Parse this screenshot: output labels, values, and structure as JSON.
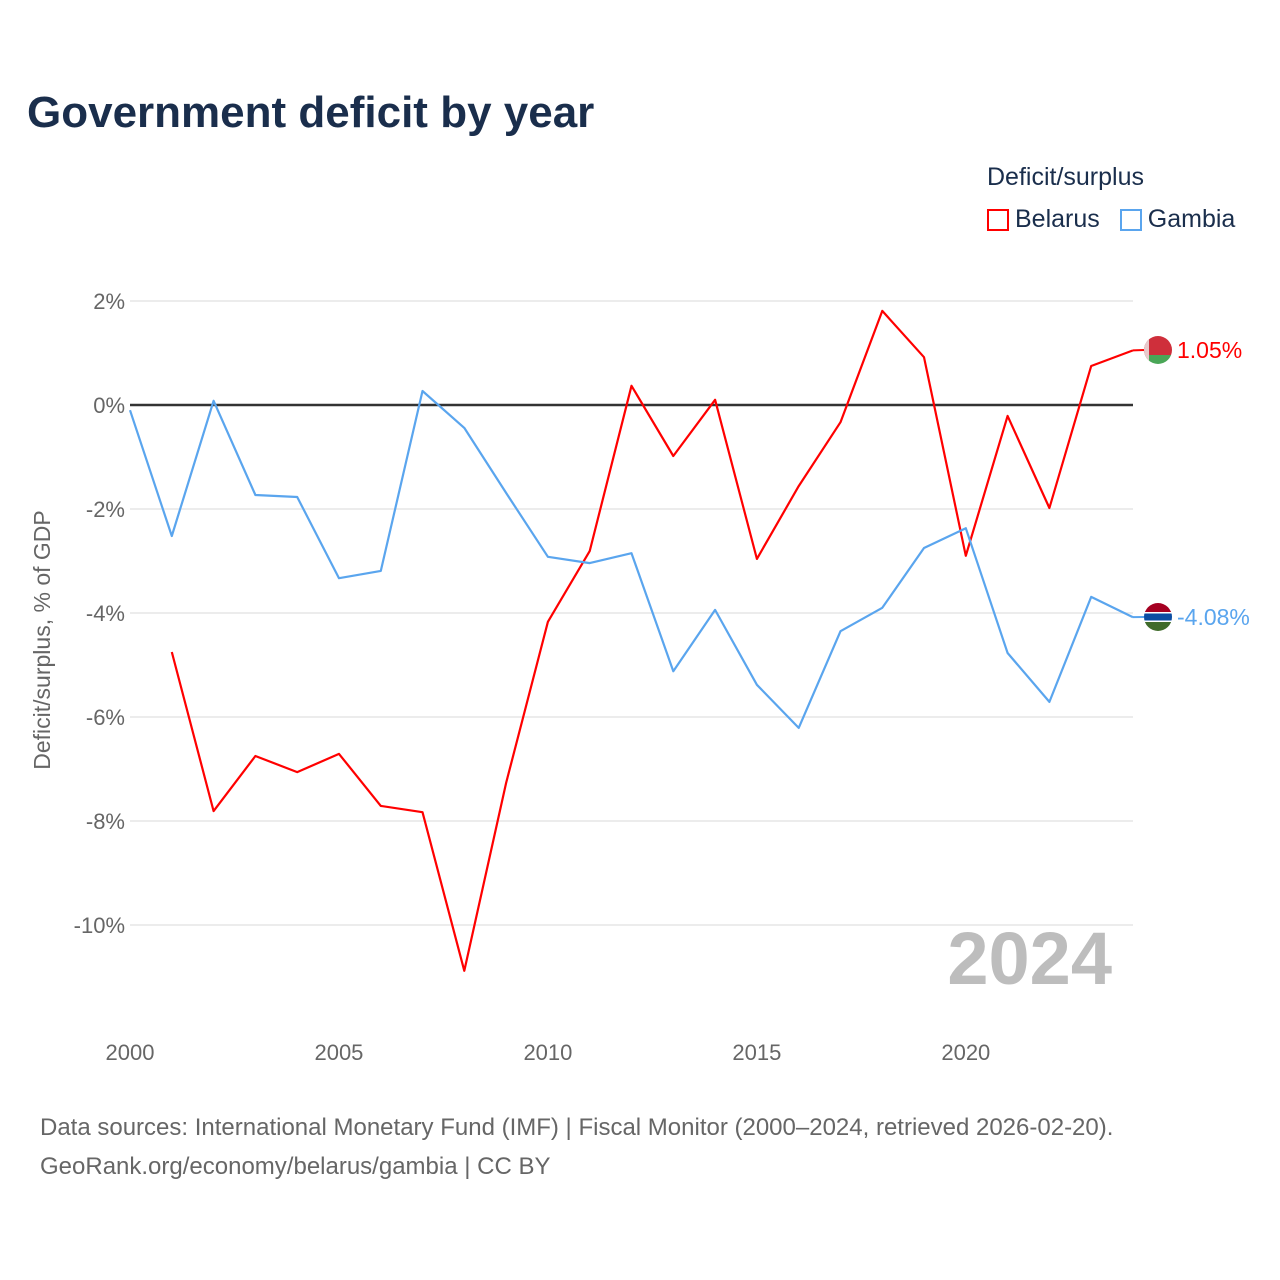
{
  "title": "Government deficit by year",
  "legend": {
    "title": "Deficit/surplus",
    "items": [
      "Belarus",
      "Gambia"
    ]
  },
  "source": {
    "line1": "Data sources: International Monetary Fund (IMF) | Fiscal Monitor (2000–2024, retrieved 2026-02-20).",
    "line2": "GeoRank.org/economy/belarus/gambia | CC BY"
  },
  "chart_data": {
    "type": "line",
    "title": "Government deficit by year",
    "xlabel": "",
    "ylabel": "Deficit/surplus, % of GDP",
    "xlim": [
      2000,
      2024
    ],
    "ylim": [
      -12,
      2.5
    ],
    "yticks": [
      2,
      0,
      -2,
      -4,
      -6,
      -8,
      -10
    ],
    "ytick_labels": [
      "2%",
      "0%",
      "-2%",
      "-4%",
      "-6%",
      "-8%",
      "-10%"
    ],
    "xticks": [
      2000,
      2005,
      2010,
      2015,
      2020
    ],
    "xtick_labels": [
      "2000",
      "2005",
      "2010",
      "2015",
      "2020"
    ],
    "year_watermark": "2024",
    "grid": true,
    "legend_position": "top-right",
    "x": [
      2000,
      2001,
      2002,
      2003,
      2004,
      2005,
      2006,
      2007,
      2008,
      2009,
      2010,
      2011,
      2012,
      2013,
      2014,
      2015,
      2016,
      2017,
      2018,
      2019,
      2020,
      2021,
      2022,
      2023,
      2024
    ],
    "series": [
      {
        "name": "Belarus",
        "color": "#ff0000",
        "end_label": "1.05%",
        "values": [
          null,
          -4.75,
          -7.81,
          -6.75,
          -7.06,
          -6.71,
          -7.71,
          -7.83,
          -10.88,
          -7.27,
          -4.17,
          -2.81,
          0.37,
          -0.98,
          0.1,
          -2.96,
          -1.56,
          -0.33,
          1.81,
          0.92,
          -2.9,
          -0.21,
          -1.98,
          0.75,
          1.05
        ]
      },
      {
        "name": "Gambia",
        "color": "#5aa5ee",
        "end_label": "-4.08%",
        "values": [
          -0.1,
          -2.52,
          0.08,
          -1.73,
          -1.77,
          -3.33,
          -3.19,
          0.27,
          -0.44,
          -1.69,
          -2.92,
          -3.04,
          -2.85,
          -5.12,
          -3.94,
          -5.38,
          -6.21,
          -4.35,
          -3.9,
          -2.75,
          -2.37,
          -4.77,
          -5.71,
          -3.69,
          -4.08
        ]
      }
    ]
  }
}
